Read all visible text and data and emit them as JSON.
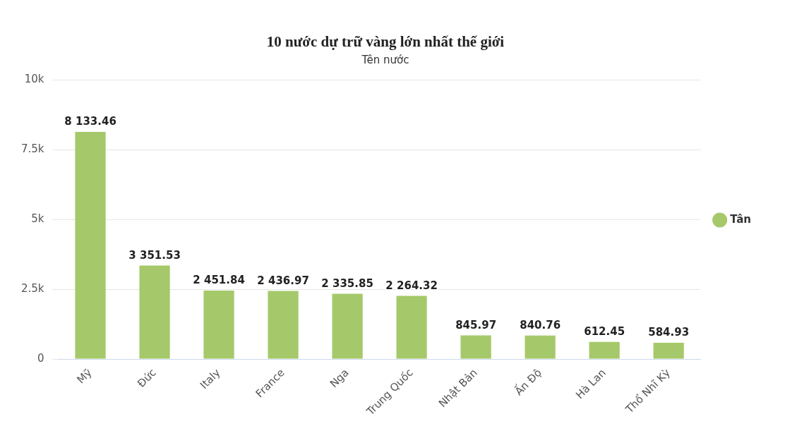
{
  "chart_data": {
    "type": "bar",
    "title": "10 nước dự trữ vàng lớn nhất thế giới",
    "subtitle": "Tên nước",
    "categories": [
      "Mỹ",
      "Đức",
      "Italy",
      "France",
      "Nga",
      "Trung Quốc",
      "Nhật Bản",
      "Ấn Độ",
      "Hà Lan",
      "Thổ Nhĩ Kỳ"
    ],
    "series": [
      {
        "name": "Tân",
        "color": "#a5c96a",
        "values": [
          8133.46,
          3351.53,
          2451.84,
          2436.97,
          2335.85,
          2264.32,
          845.97,
          840.76,
          612.45,
          584.93
        ],
        "value_labels": [
          "8 133.46",
          "3 351.53",
          "2 451.84",
          "2 436.97",
          "2 335.85",
          "2 264.32",
          "845.97",
          "840.76",
          "612.45",
          "584.93"
        ]
      }
    ],
    "ylim": [
      0,
      10000
    ],
    "yticks": [
      0,
      {
        "value": 2500,
        "label": "2.5k"
      },
      {
        "value": 5000,
        "label": "5k"
      },
      {
        "value": 7500,
        "label": "7.5k"
      },
      {
        "value": 10000,
        "label": "10k"
      }
    ],
    "grid": "y",
    "legend": "right"
  }
}
